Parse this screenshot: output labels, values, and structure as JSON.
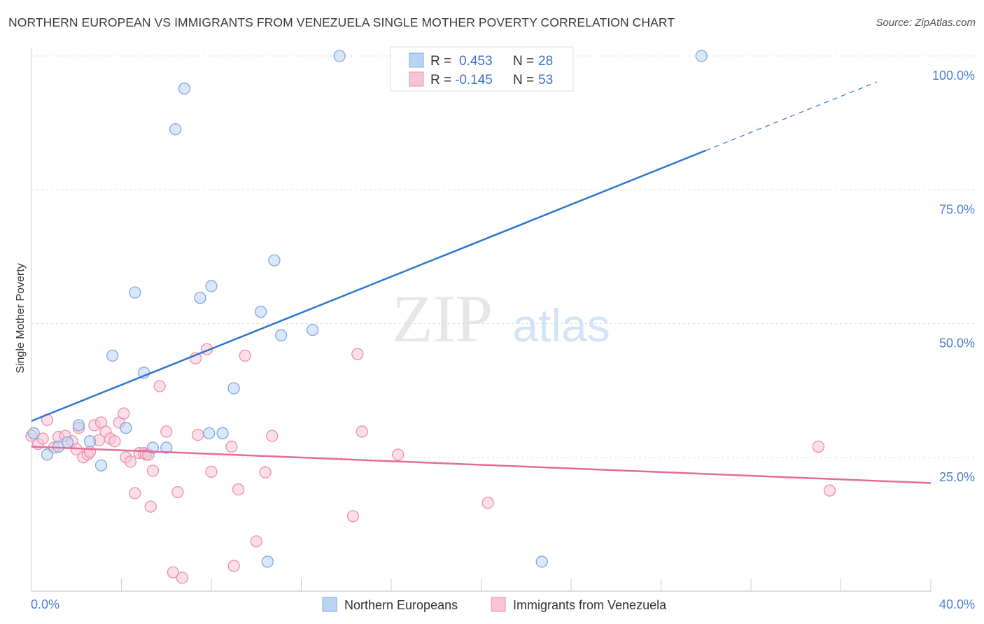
{
  "header": {
    "title": "NORTHERN EUROPEAN VS IMMIGRANTS FROM VENEZUELA SINGLE MOTHER POVERTY CORRELATION CHART",
    "source": "Source: ZipAtlas.com"
  },
  "watermark": {
    "zip": "ZIP",
    "atlas": "atlas"
  },
  "colors": {
    "blue_fill": "#b9d3f3",
    "blue_stroke": "#7fa8e0",
    "blue_line": "#2f75d0",
    "pink_fill": "#f8c4d4",
    "pink_stroke": "#eb8fac",
    "pink_line": "#e56c95",
    "tick_text": "#4a7fd0",
    "grid": "#dddddd"
  },
  "legend": {
    "rows": [
      {
        "r_label": "R = ",
        "r_value": "0.453",
        "n_label": "N = ",
        "n_value": "28"
      },
      {
        "r_label": "R = ",
        "r_value": "-0.145",
        "n_label": "N = ",
        "n_value": "53"
      }
    ]
  },
  "chart_data": {
    "type": "scatter",
    "title": "NORTHERN EUROPEAN VS IMMIGRANTS FROM VENEZUELA SINGLE MOTHER POVERTY CORRELATION CHART",
    "xlabel": "",
    "ylabel": "Single Mother Poverty",
    "xlim": [
      0,
      40
    ],
    "ylim": [
      0,
      100
    ],
    "x_tick_labels": [
      "0.0%",
      "40.0%"
    ],
    "y_ticks": [
      25,
      50,
      75,
      100
    ],
    "y_tick_labels": [
      "25.0%",
      "50.0%",
      "75.0%",
      "100.0%"
    ],
    "grid": true,
    "legend_position": "bottom",
    "series": [
      {
        "name": "Northern Europeans",
        "r": 0.453,
        "n": 28,
        "trend": {
          "y_at_x0": 31.8,
          "slope_per_pct": 1.685,
          "solid_until_x": 30.0,
          "dashed_until_x": 37.6
        },
        "points": [
          [
            0.1,
            29.5
          ],
          [
            0.7,
            25.5
          ],
          [
            1.2,
            27.0
          ],
          [
            1.6,
            27.8
          ],
          [
            2.1,
            31.0
          ],
          [
            2.6,
            28.0
          ],
          [
            3.1,
            23.5
          ],
          [
            3.6,
            44.0
          ],
          [
            4.2,
            30.5
          ],
          [
            4.6,
            55.8
          ],
          [
            5.0,
            40.8
          ],
          [
            5.4,
            26.8
          ],
          [
            6.0,
            26.8
          ],
          [
            6.4,
            86.3
          ],
          [
            6.8,
            93.9
          ],
          [
            7.5,
            54.8
          ],
          [
            7.9,
            29.5
          ],
          [
            8.0,
            57.0
          ],
          [
            8.5,
            29.5
          ],
          [
            9.0,
            37.9
          ],
          [
            10.2,
            52.2
          ],
          [
            10.5,
            5.5
          ],
          [
            10.8,
            61.8
          ],
          [
            11.1,
            47.8
          ],
          [
            12.5,
            48.8
          ],
          [
            13.7,
            100.0
          ],
          [
            22.7,
            5.5
          ],
          [
            29.8,
            100.0
          ]
        ]
      },
      {
        "name": "Immigrants from Venezuela",
        "r": -0.145,
        "n": 53,
        "trend": {
          "y_at_x0": 27.0,
          "slope_per_pct": -0.17,
          "solid_until_x": 40.0
        },
        "points": [
          [
            0.0,
            29.0
          ],
          [
            0.3,
            27.5
          ],
          [
            0.5,
            28.5
          ],
          [
            0.7,
            32.0
          ],
          [
            1.0,
            26.8
          ],
          [
            1.2,
            28.8
          ],
          [
            1.5,
            29.0
          ],
          [
            1.8,
            28.0
          ],
          [
            2.0,
            26.5
          ],
          [
            2.1,
            30.5
          ],
          [
            2.3,
            25.0
          ],
          [
            2.5,
            25.5
          ],
          [
            2.6,
            26.0
          ],
          [
            2.8,
            31.0
          ],
          [
            3.0,
            28.2
          ],
          [
            3.1,
            31.5
          ],
          [
            3.3,
            29.8
          ],
          [
            3.5,
            28.5
          ],
          [
            3.7,
            28.0
          ],
          [
            3.9,
            31.5
          ],
          [
            4.1,
            33.2
          ],
          [
            4.2,
            25.0
          ],
          [
            4.4,
            24.2
          ],
          [
            4.6,
            18.3
          ],
          [
            4.8,
            25.8
          ],
          [
            5.0,
            25.8
          ],
          [
            5.1,
            25.5
          ],
          [
            5.2,
            25.5
          ],
          [
            5.3,
            15.8
          ],
          [
            5.4,
            22.5
          ],
          [
            5.7,
            38.3
          ],
          [
            6.0,
            29.8
          ],
          [
            6.3,
            3.5
          ],
          [
            6.5,
            18.5
          ],
          [
            6.7,
            2.5
          ],
          [
            7.3,
            43.5
          ],
          [
            7.4,
            29.2
          ],
          [
            7.8,
            45.2
          ],
          [
            8.0,
            22.3
          ],
          [
            8.9,
            27.0
          ],
          [
            9.0,
            4.7
          ],
          [
            9.2,
            19.0
          ],
          [
            9.5,
            44.0
          ],
          [
            10.0,
            9.3
          ],
          [
            10.4,
            22.2
          ],
          [
            10.7,
            29.0
          ],
          [
            14.3,
            14.0
          ],
          [
            14.5,
            44.3
          ],
          [
            14.7,
            29.8
          ],
          [
            16.3,
            25.5
          ],
          [
            20.3,
            16.5
          ],
          [
            35.0,
            27.0
          ],
          [
            35.5,
            18.8
          ]
        ]
      }
    ]
  }
}
